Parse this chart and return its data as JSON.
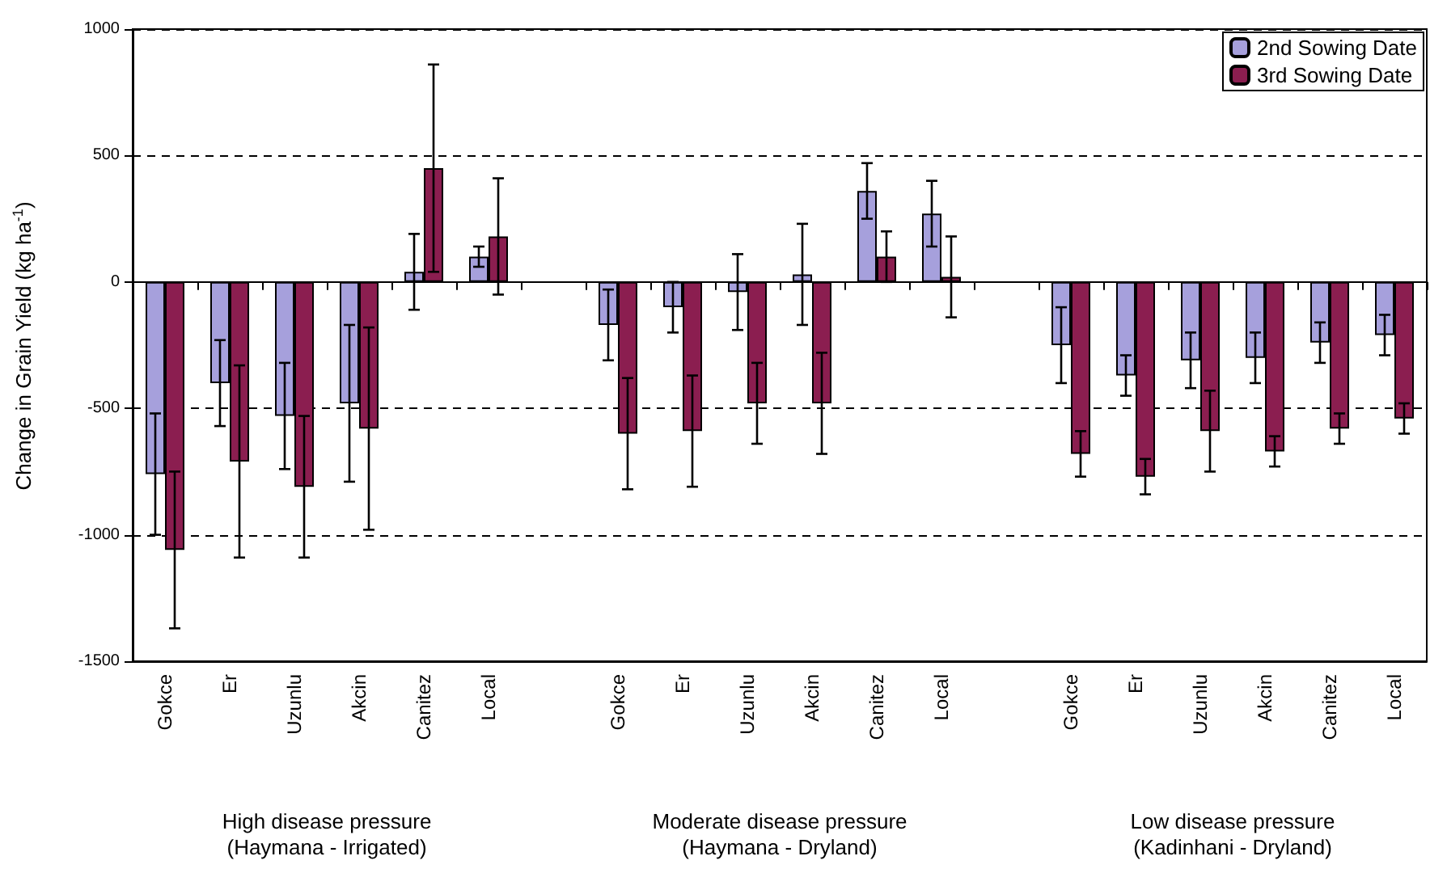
{
  "chart_data": {
    "type": "bar",
    "ylabel": "Change in Grain Yield (kg ha$^{-1}$)",
    "categories": [
      "Gokce",
      "Er",
      "Uzunlu",
      "Akcin",
      "Canitez",
      "Local",
      null,
      "Gokce",
      "Er",
      "Uzunlu",
      "Akcin",
      "Canitez",
      "Local",
      null,
      "Gokce",
      "Er",
      "Uzunlu",
      "Akcin",
      "Canitez",
      "Local"
    ],
    "series": [
      {
        "name": "2nd Sowing Date",
        "color": "#a6a0dc",
        "values": [
          -760,
          -400,
          -530,
          -480,
          40,
          100,
          null,
          -170,
          -100,
          -40,
          30,
          360,
          270,
          null,
          -250,
          -370,
          -310,
          -300,
          -240,
          -210
        ],
        "errors": [
          240,
          170,
          210,
          310,
          150,
          40,
          null,
          140,
          100,
          150,
          200,
          110,
          130,
          null,
          150,
          80,
          110,
          100,
          80,
          80
        ]
      },
      {
        "name": "3rd Sowing Date",
        "color": "#8b1e50",
        "values": [
          -1060,
          -710,
          -810,
          -580,
          450,
          180,
          null,
          -600,
          -590,
          -480,
          -480,
          100,
          20,
          null,
          -680,
          -770,
          -590,
          -670,
          -580,
          -540
        ],
        "errors": [
          310,
          380,
          280,
          400,
          410,
          230,
          null,
          220,
          220,
          160,
          200,
          100,
          160,
          null,
          90,
          70,
          160,
          60,
          60,
          60
        ]
      }
    ],
    "ylim": [
      -1500,
      1000
    ],
    "yticks": [
      -1500,
      -1000,
      -500,
      0,
      500,
      1000
    ],
    "grid": "y",
    "legend": "top right",
    "annotations": [
      "High disease pressure\n(Haymana - Irrigated)",
      "Moderate disease pressure\n(Haymana - Dryland)",
      "Low disease pressure\n(Kadinhani - Dryland)"
    ]
  }
}
